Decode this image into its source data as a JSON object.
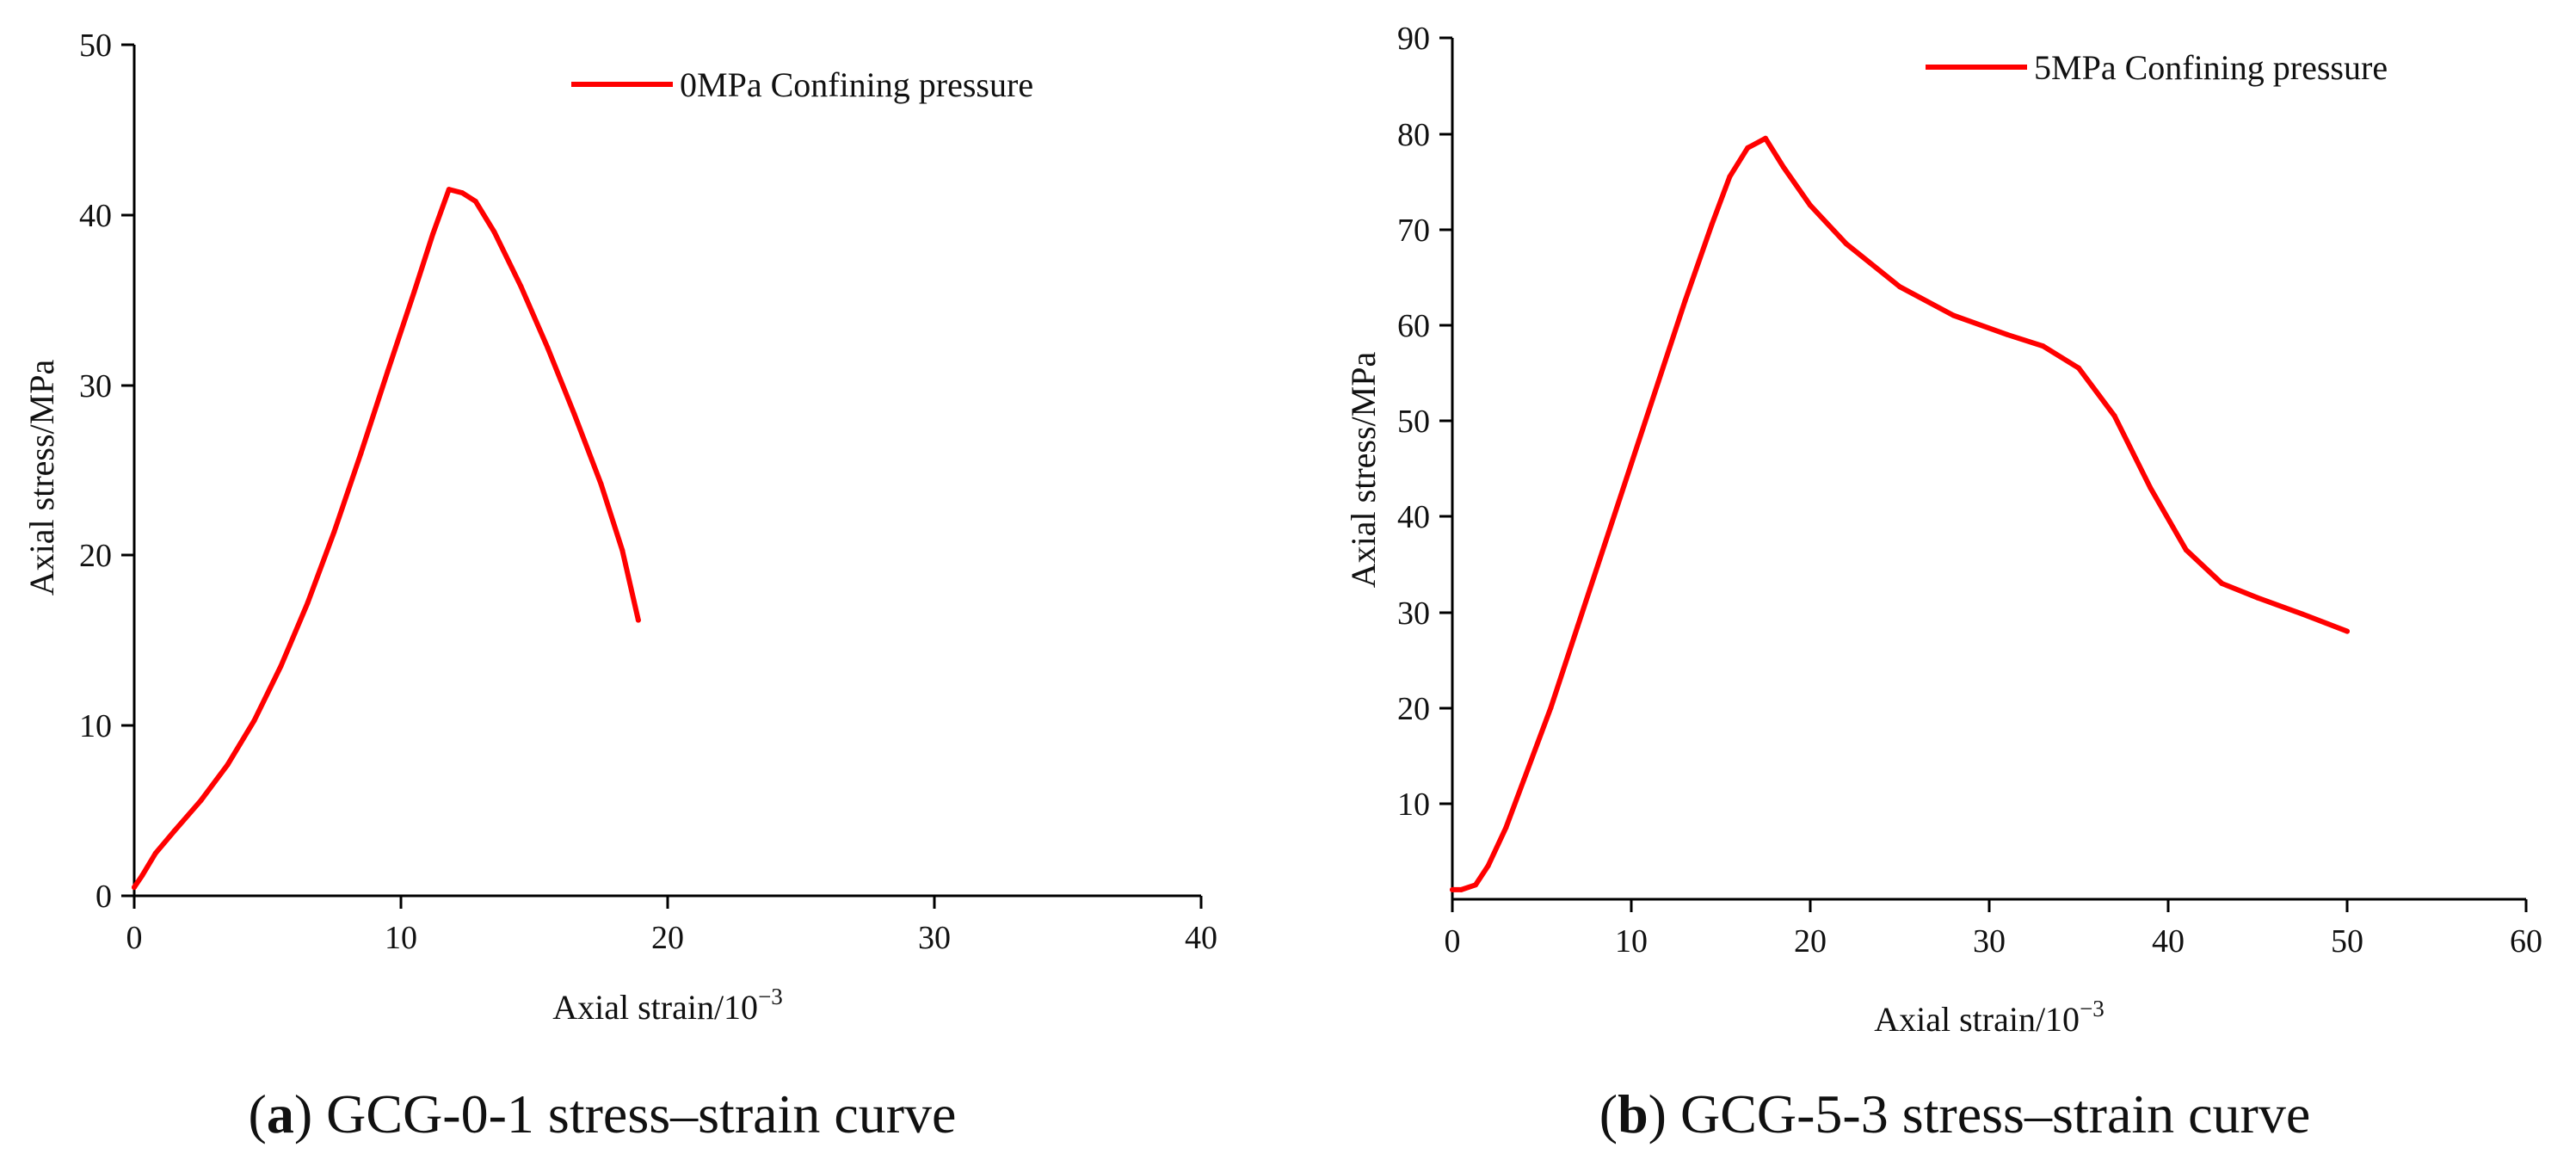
{
  "chart_data": [
    {
      "type": "line",
      "id": "a",
      "caption_letter": "a",
      "caption_text": "GCG-0-1 stress–strain curve",
      "xlabel": "Axial strain/10",
      "xlabel_exp": "−3",
      "ylabel": "Axial stress/MPa",
      "xlim": [
        0,
        40
      ],
      "ylim": [
        0,
        50
      ],
      "xticks": [
        "0",
        "10",
        "20",
        "30",
        "40"
      ],
      "yticks": [
        "0",
        "10",
        "20",
        "30",
        "40",
        "50"
      ],
      "legend": "top-right",
      "series": [
        {
          "name": "0MPa Confining pressure",
          "color": "#ff0000",
          "x": [
            0,
            0.3,
            0.8,
            1.5,
            2.5,
            3.5,
            4.5,
            5.5,
            6.5,
            7.5,
            8.5,
            9.5,
            10.5,
            11.2,
            11.8,
            12.3,
            12.8,
            13.5,
            14.5,
            15.5,
            16.5,
            17.5,
            18.3,
            18.9
          ],
          "y": [
            0.5,
            1.2,
            2.5,
            3.8,
            5.6,
            7.7,
            10.3,
            13.5,
            17.2,
            21.4,
            26.0,
            30.8,
            35.5,
            38.9,
            41.5,
            41.3,
            40.8,
            39.0,
            35.8,
            32.2,
            28.3,
            24.2,
            20.3,
            16.2
          ]
        }
      ]
    },
    {
      "type": "line",
      "id": "b",
      "caption_letter": "b",
      "caption_text": "GCG-5-3 stress–strain curve",
      "xlabel": "Axial strain/10",
      "xlabel_exp": "−3",
      "ylabel": "Axial stress/MPa",
      "xlim": [
        0,
        60
      ],
      "ylim": [
        0,
        90
      ],
      "xticks": [
        "0",
        "10",
        "20",
        "30",
        "40",
        "50",
        "60"
      ],
      "yticks": [
        "10",
        "20",
        "30",
        "40",
        "50",
        "60",
        "70",
        "80",
        "90"
      ],
      "legend": "top-right",
      "series": [
        {
          "name": "5MPa Confining pressure",
          "color": "#ff0000",
          "x": [
            0,
            0.5,
            1.3,
            2.0,
            3.0,
            4.0,
            5.5,
            7.0,
            8.5,
            10.0,
            11.5,
            13.0,
            14.5,
            15.5,
            16.5,
            17.5,
            18.5,
            20.0,
            22.0,
            25.0,
            28.0,
            31.0,
            33.0,
            35.0,
            37.0,
            39.0,
            41.0,
            43.0,
            45.0,
            47.5,
            50.0
          ],
          "y": [
            1.0,
            1.0,
            1.5,
            3.5,
            7.5,
            12.5,
            20.0,
            28.5,
            37.0,
            45.5,
            54.0,
            62.5,
            70.5,
            75.5,
            78.5,
            79.5,
            76.5,
            72.5,
            68.5,
            64.0,
            61.0,
            59.0,
            57.8,
            55.5,
            50.5,
            43.0,
            36.5,
            33.0,
            31.5,
            29.8,
            28.0
          ]
        }
      ]
    }
  ]
}
